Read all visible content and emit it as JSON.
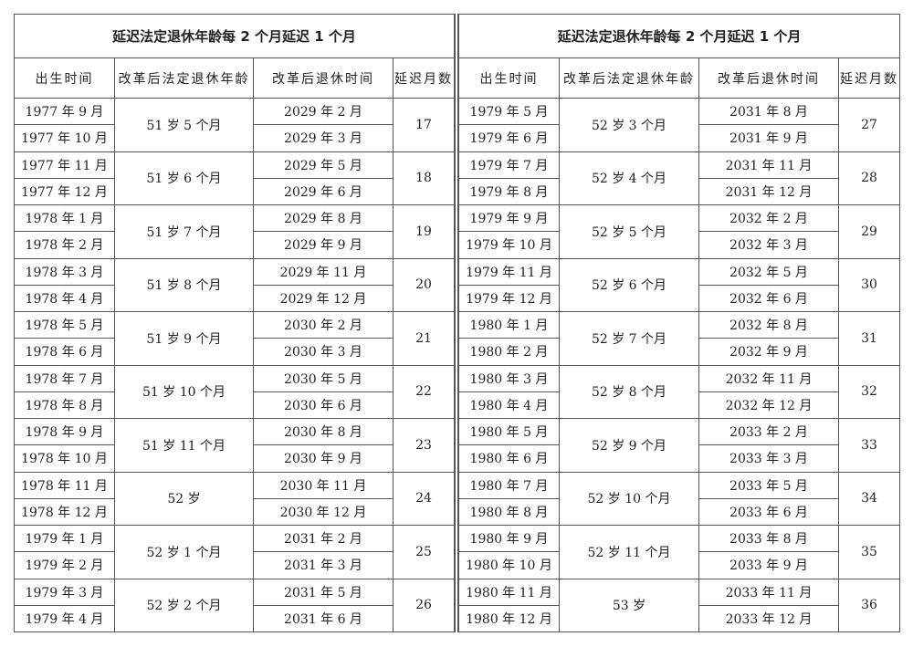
{
  "title": "延迟法定退休年龄每 2 个月延迟 1 个月",
  "headers": [
    "出生时间",
    "改革后法定退休年龄",
    "改革后退休时间",
    "延迟月数"
  ],
  "left": [
    {
      "birth": [
        "1977 年 9 月",
        "1977 年 10 月"
      ],
      "age": "51 岁 5 个月",
      "retire": [
        "2029 年 2 月",
        "2029 年 3 月"
      ],
      "delay": "17"
    },
    {
      "birth": [
        "1977 年 11 月",
        "1977 年 12 月"
      ],
      "age": "51 岁 6 个月",
      "retire": [
        "2029 年 5 月",
        "2029 年 6 月"
      ],
      "delay": "18"
    },
    {
      "birth": [
        "1978 年 1 月",
        "1978 年 2 月"
      ],
      "age": "51 岁 7 个月",
      "retire": [
        "2029 年 8 月",
        "2029 年 9 月"
      ],
      "delay": "19"
    },
    {
      "birth": [
        "1978 年 3 月",
        "1978 年 4 月"
      ],
      "age": "51 岁 8 个月",
      "retire": [
        "2029 年 11 月",
        "2029 年 12 月"
      ],
      "delay": "20"
    },
    {
      "birth": [
        "1978 年 5 月",
        "1978 年 6 月"
      ],
      "age": "51 岁 9 个月",
      "retire": [
        "2030 年 2 月",
        "2030 年 3 月"
      ],
      "delay": "21"
    },
    {
      "birth": [
        "1978 年 7 月",
        "1978 年 8 月"
      ],
      "age": "51 岁 10 个月",
      "retire": [
        "2030 年 5 月",
        "2030 年 6 月"
      ],
      "delay": "22"
    },
    {
      "birth": [
        "1978 年 9 月",
        "1978 年 10 月"
      ],
      "age": "51 岁 11 个月",
      "retire": [
        "2030 年 8 月",
        "2030 年 9 月"
      ],
      "delay": "23"
    },
    {
      "birth": [
        "1978 年 11 月",
        "1978 年 12 月"
      ],
      "age": "52 岁",
      "retire": [
        "2030 年 11 月",
        "2030 年 12 月"
      ],
      "delay": "24"
    },
    {
      "birth": [
        "1979 年 1 月",
        "1979 年 2 月"
      ],
      "age": "52 岁 1 个月",
      "retire": [
        "2031 年 2 月",
        "2031 年 3 月"
      ],
      "delay": "25"
    },
    {
      "birth": [
        "1979 年 3 月",
        "1979 年 4 月"
      ],
      "age": "52 岁 2 个月",
      "retire": [
        "2031 年 5 月",
        "2031 年 6 月"
      ],
      "delay": "26"
    }
  ],
  "right": [
    {
      "birth": [
        "1979 年 5 月",
        "1979 年 6 月"
      ],
      "age": "52 岁 3 个月",
      "retire": [
        "2031 年 8 月",
        "2031 年 9 月"
      ],
      "delay": "27"
    },
    {
      "birth": [
        "1979 年 7 月",
        "1979 年 8 月"
      ],
      "age": "52 岁 4 个月",
      "retire": [
        "2031 年 11 月",
        "2031 年 12 月"
      ],
      "delay": "28"
    },
    {
      "birth": [
        "1979 年 9 月",
        "1979 年 10 月"
      ],
      "age": "52 岁 5 个月",
      "retire": [
        "2032 年 2 月",
        "2032 年 3 月"
      ],
      "delay": "29"
    },
    {
      "birth": [
        "1979 年 11 月",
        "1979 年 12 月"
      ],
      "age": "52 岁 6 个月",
      "retire": [
        "2032 年 5 月",
        "2032 年 6 月"
      ],
      "delay": "30"
    },
    {
      "birth": [
        "1980 年 1 月",
        "1980 年 2 月"
      ],
      "age": "52 岁 7 个月",
      "retire": [
        "2032 年 8 月",
        "2032 年 9 月"
      ],
      "delay": "31"
    },
    {
      "birth": [
        "1980 年 3 月",
        "1980 年 4 月"
      ],
      "age": "52 岁 8 个月",
      "retire": [
        "2032 年 11 月",
        "2032 年 12 月"
      ],
      "delay": "32"
    },
    {
      "birth": [
        "1980 年 5 月",
        "1980 年 6 月"
      ],
      "age": "52 岁 9 个月",
      "retire": [
        "2033 年 2 月",
        "2033 年 3 月"
      ],
      "delay": "33"
    },
    {
      "birth": [
        "1980 年 7 月",
        "1980 年 8 月"
      ],
      "age": "52 岁 10 个月",
      "retire": [
        "2033 年 5 月",
        "2033 年 6 月"
      ],
      "delay": "34"
    },
    {
      "birth": [
        "1980 年 9 月",
        "1980 年 10 月"
      ],
      "age": "52 岁 11 个月",
      "retire": [
        "2033 年 8 月",
        "2033 年 9 月"
      ],
      "delay": "35"
    },
    {
      "birth": [
        "1980 年 11 月",
        "1980 年 12 月"
      ],
      "age": "53 岁",
      "retire": [
        "2033 年 11 月",
        "2033 年 12 月"
      ],
      "delay": "36"
    }
  ]
}
